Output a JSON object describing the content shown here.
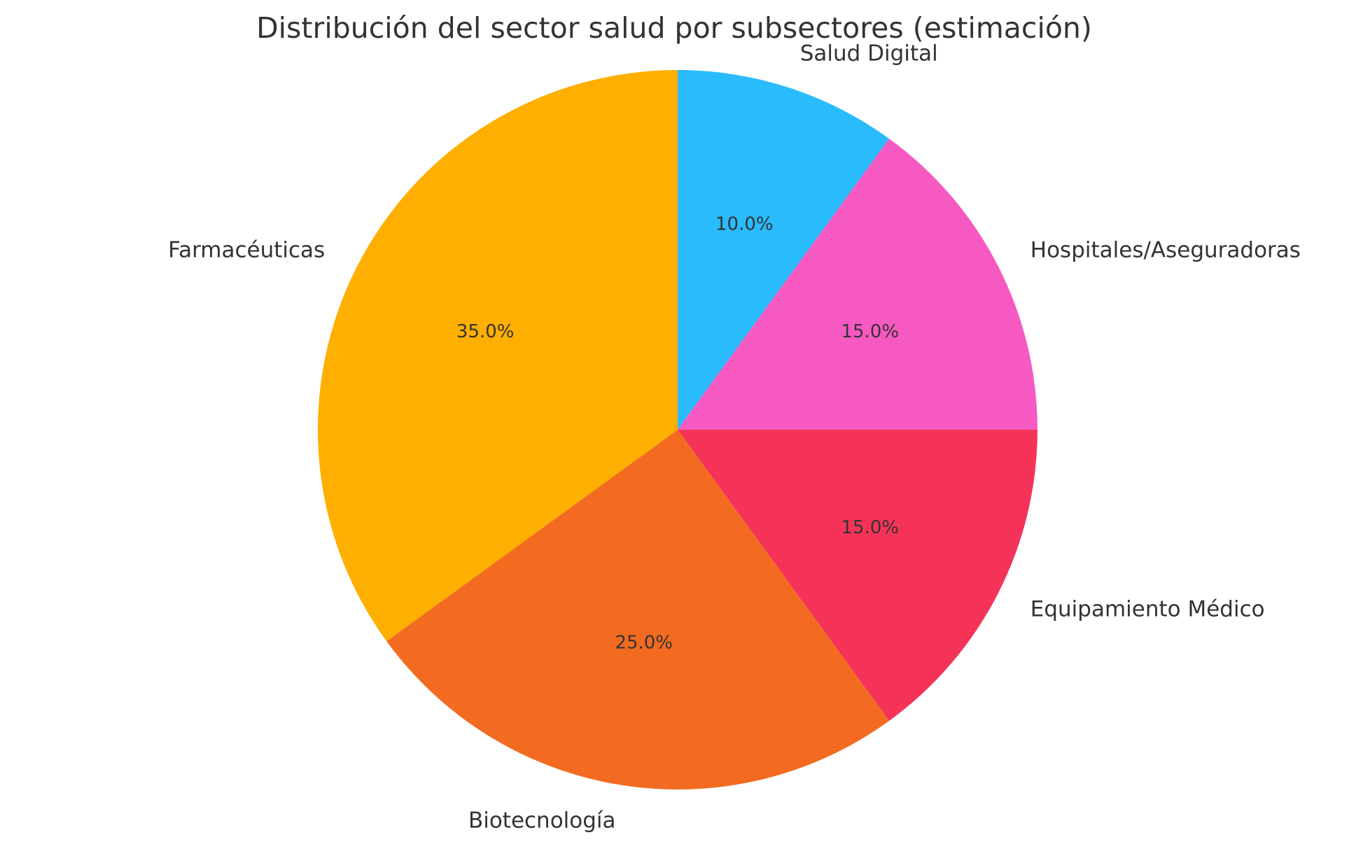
{
  "chart_data": {
    "type": "pie",
    "title": "Distribución del sector salud por subsectores (estimación)",
    "start_angle_deg": 90,
    "direction": "clockwise",
    "slices": [
      {
        "label": "Salud Digital",
        "value": 10.0,
        "pct_label": "10.0%",
        "color": "#29BBFC"
      },
      {
        "label": "Hospitales/Aseguradoras",
        "value": 15.0,
        "pct_label": "15.0%",
        "color": "#F759C2"
      },
      {
        "label": "Equipamiento Médico",
        "value": 15.0,
        "pct_label": "15.0%",
        "color": "#F53358"
      },
      {
        "label": "Biotecnología",
        "value": 25.0,
        "pct_label": "25.0%",
        "color": "#F26B21"
      },
      {
        "label": "Farmacéuticas",
        "value": 35.0,
        "pct_label": "35.0%",
        "color": "#FEAF00"
      }
    ]
  }
}
